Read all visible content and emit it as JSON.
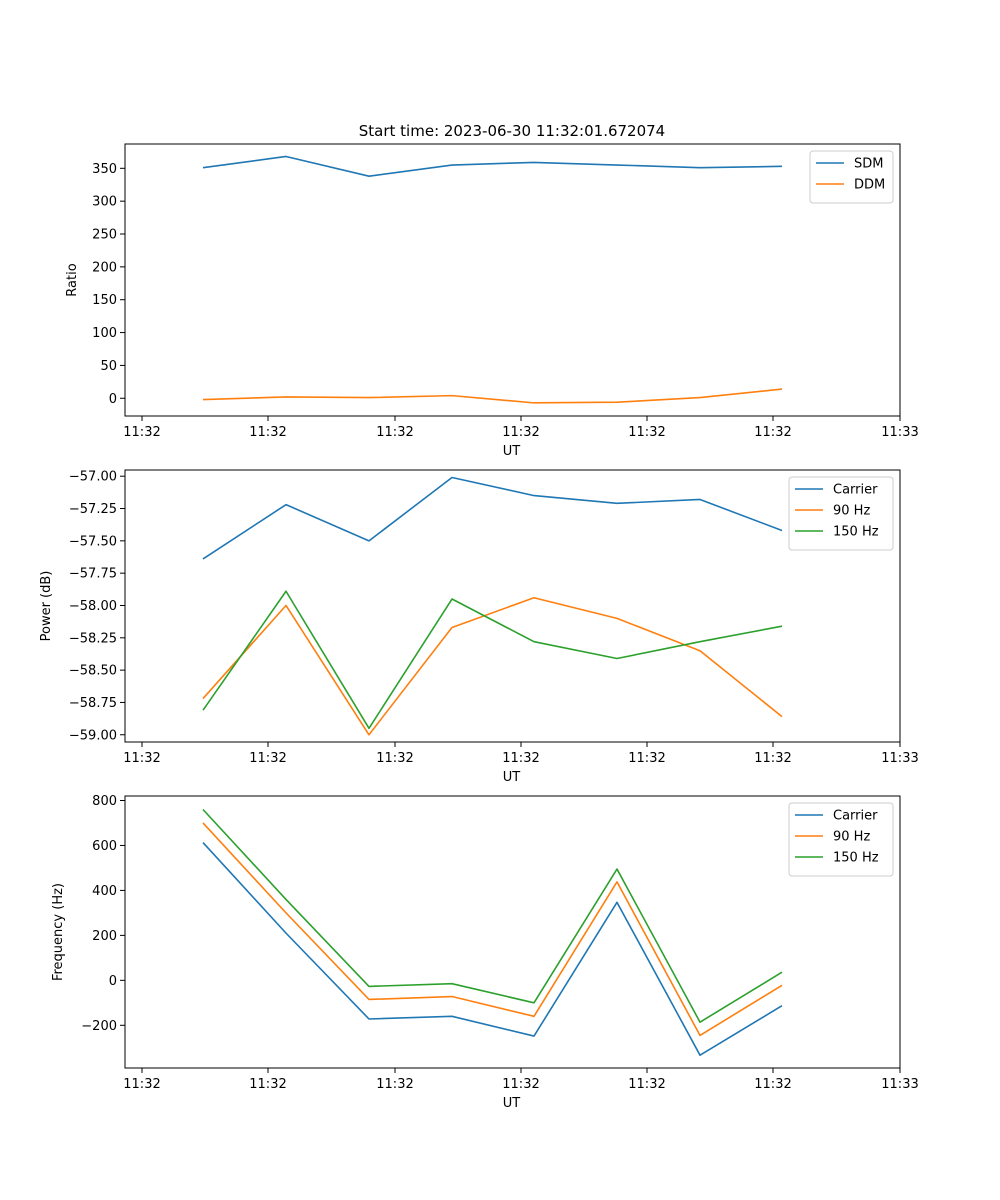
{
  "title": "Start time: 2023-06-30 11:32:01.672074",
  "chart_data": [
    {
      "type": "line",
      "xlabel": "UT",
      "ylabel": "Ratio",
      "xticks": [
        "11:32",
        "11:32",
        "11:32",
        "11:32",
        "11:32",
        "11:32",
        "11:32"
      ],
      "xtick_last": "11:33",
      "ylim": [
        -27,
        387
      ],
      "yticks": [
        0,
        50,
        100,
        150,
        200,
        250,
        300,
        350
      ],
      "ytick_labels": [
        "0",
        "50",
        "100",
        "150",
        "200",
        "250",
        "300",
        "350"
      ],
      "legend_position": "top-right",
      "series": [
        {
          "name": "SDM",
          "color": "#1f77b4",
          "values": [
            351,
            368,
            338,
            355,
            359,
            355,
            351,
            353
          ]
        },
        {
          "name": "DDM",
          "color": "#ff7f0e",
          "values": [
            -2,
            2,
            1,
            4,
            -7,
            -6,
            1,
            14
          ]
        }
      ]
    },
    {
      "type": "line",
      "xlabel": "UT",
      "ylabel": "Power (dB)",
      "xticks": [
        "11:32",
        "11:32",
        "11:32",
        "11:32",
        "11:32",
        "11:32",
        "11:32"
      ],
      "xtick_last": "11:33",
      "ylim": [
        -59.056,
        -56.952
      ],
      "yticks": [
        -59.0,
        -58.75,
        -58.5,
        -58.25,
        -58.0,
        -57.75,
        -57.5,
        -57.25,
        -57.0
      ],
      "ytick_labels": [
        "−59.00",
        "−58.75",
        "−58.50",
        "−58.25",
        "−58.00",
        "−57.75",
        "−57.50",
        "−57.25",
        "−57.00"
      ],
      "legend_position": "top-right",
      "series": [
        {
          "name": "Carrier",
          "color": "#1f77b4",
          "values": [
            -57.64,
            -57.22,
            -57.5,
            -57.01,
            -57.15,
            -57.21,
            -57.18,
            -57.42
          ]
        },
        {
          "name": "90 Hz",
          "color": "#ff7f0e",
          "values": [
            -58.72,
            -58.0,
            -59.0,
            -58.17,
            -57.94,
            -58.1,
            -58.35,
            -58.86
          ]
        },
        {
          "name": "150 Hz",
          "color": "#2ca02c",
          "values": [
            -58.81,
            -57.89,
            -58.95,
            -57.95,
            -58.28,
            -58.41,
            -58.28,
            -58.16
          ]
        }
      ]
    },
    {
      "type": "line",
      "xlabel": "UT",
      "ylabel": "Frequency (Hz)",
      "xticks": [
        "11:32",
        "11:32",
        "11:32",
        "11:32",
        "11:32",
        "11:32",
        "11:32"
      ],
      "xtick_last": "11:33",
      "ylim": [
        -390,
        820
      ],
      "yticks": [
        -200,
        0,
        200,
        400,
        600,
        800
      ],
      "ytick_labels": [
        "−200",
        "0",
        "200",
        "400",
        "600",
        "800"
      ],
      "legend_position": "top-right",
      "series": [
        {
          "name": "Carrier",
          "color": "#1f77b4",
          "values": [
            613,
            210,
            -172,
            -160,
            -248,
            347,
            -333,
            -113
          ]
        },
        {
          "name": "90 Hz",
          "color": "#ff7f0e",
          "values": [
            700,
            300,
            -85,
            -72,
            -160,
            438,
            -245,
            -22
          ]
        },
        {
          "name": "150 Hz",
          "color": "#2ca02c",
          "values": [
            760,
            360,
            -27,
            -15,
            -100,
            495,
            -186,
            36
          ]
        }
      ]
    }
  ]
}
